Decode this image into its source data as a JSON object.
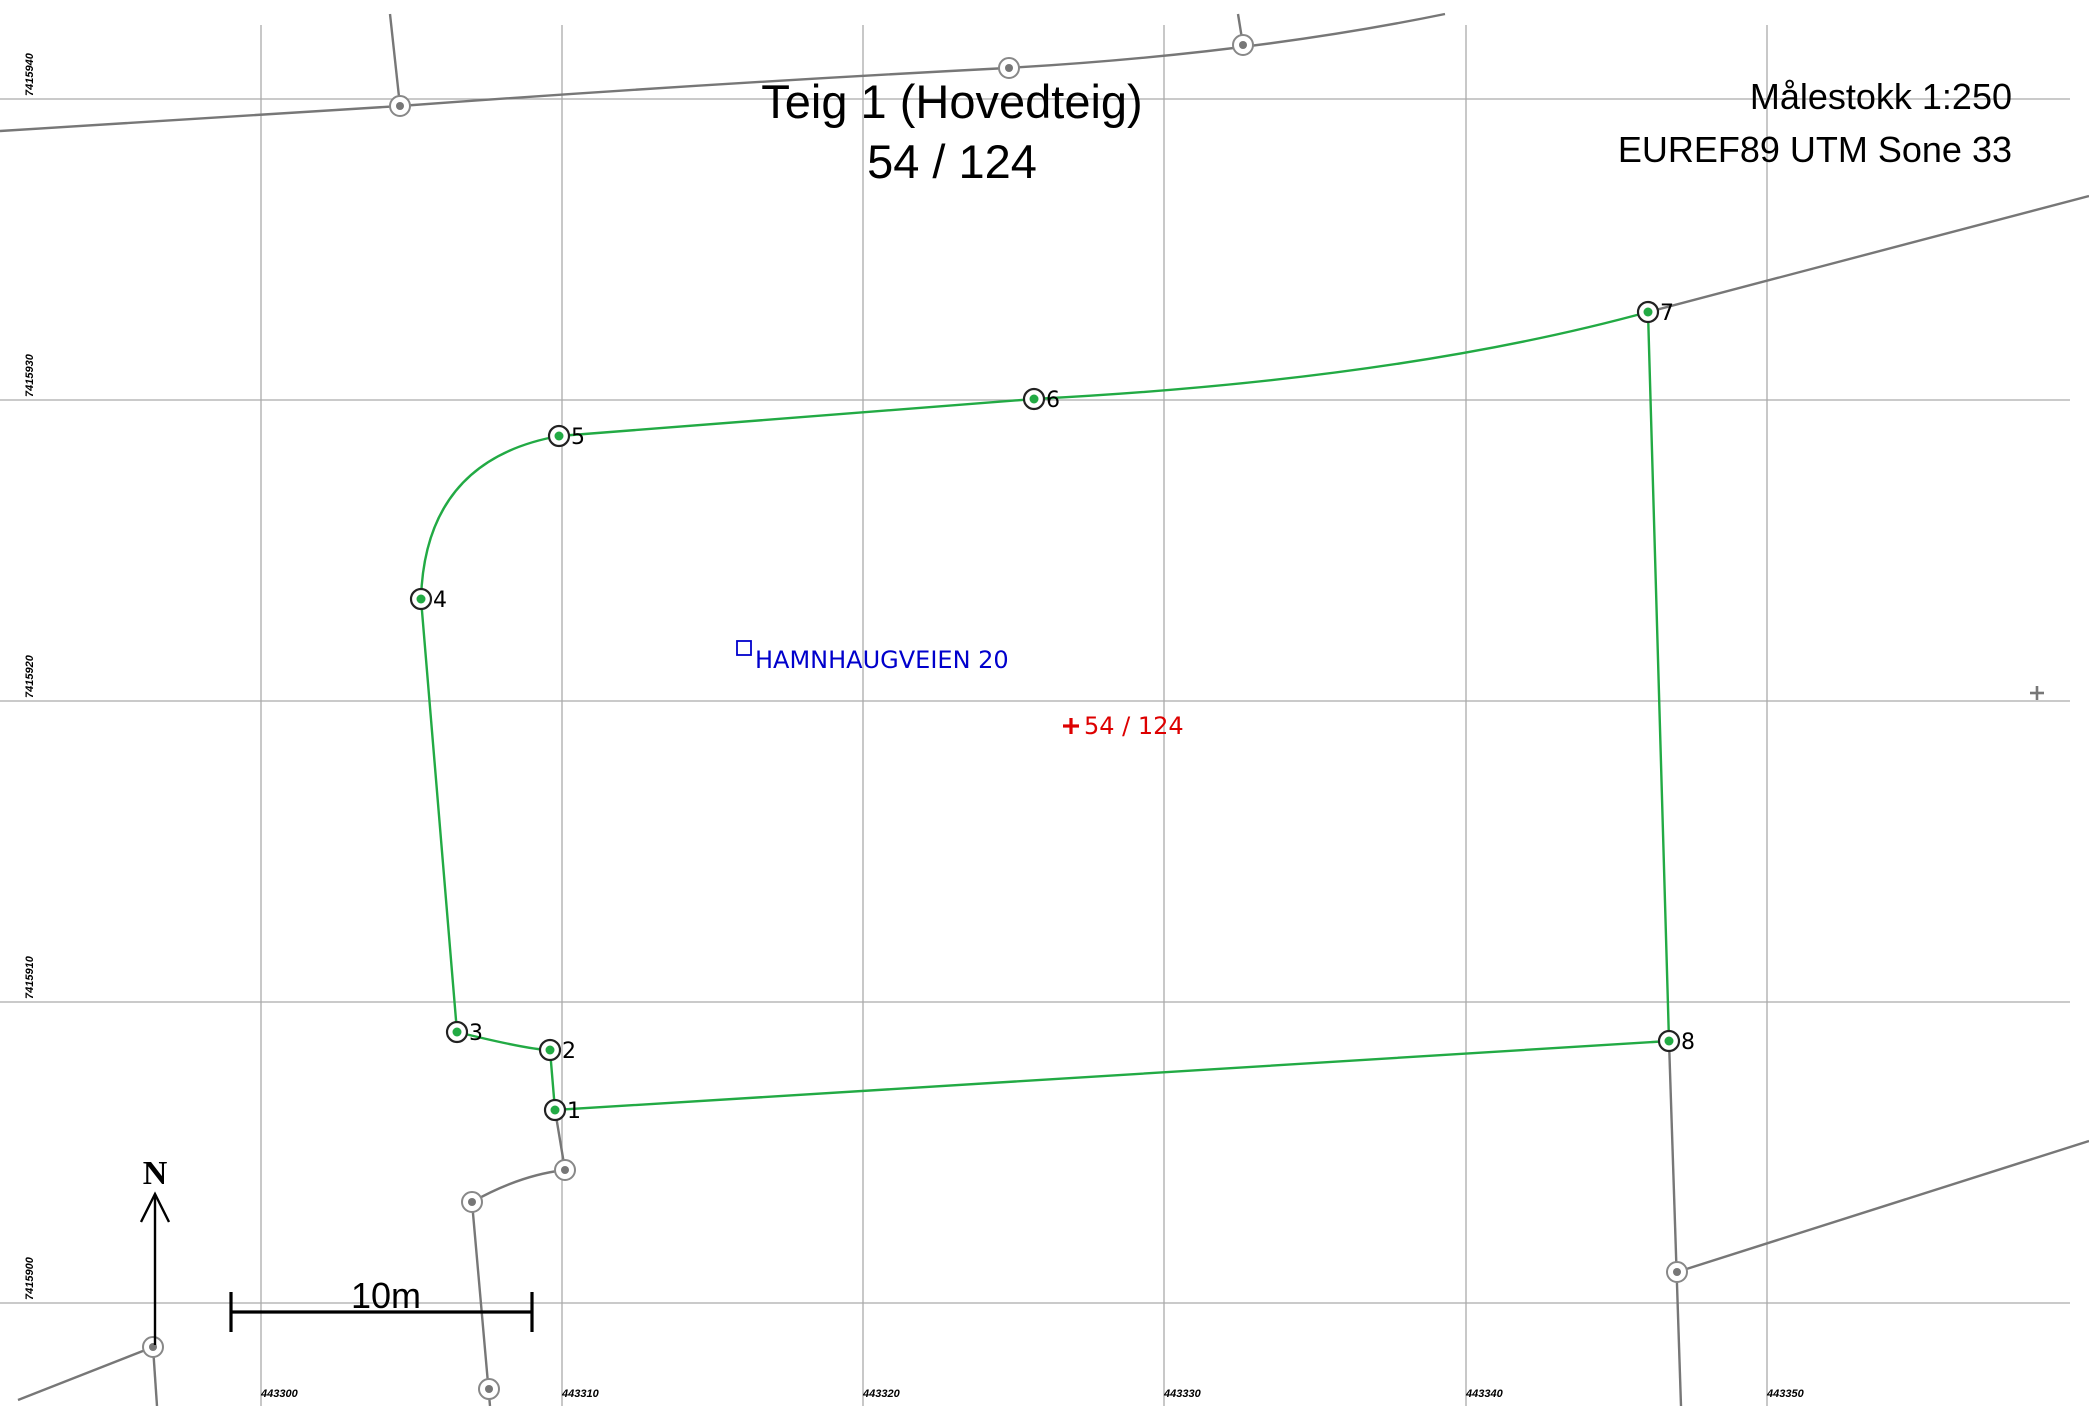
{
  "title": {
    "line1": "Teig 1 (Hovedteig)",
    "line2": "54 / 124"
  },
  "info": {
    "scale": "Målestokk 1:250",
    "crs": "EUREF89 UTM Sone 33"
  },
  "grid": {
    "easting": [
      "443300",
      "443310",
      "443320",
      "443330",
      "443340",
      "443350"
    ],
    "northing": [
      "7415940",
      "7415930",
      "7415920",
      "7415910",
      "7415900"
    ]
  },
  "boundary_points": [
    {
      "label": "1"
    },
    {
      "label": "2"
    },
    {
      "label": "3"
    },
    {
      "label": "4"
    },
    {
      "label": "5"
    },
    {
      "label": "6"
    },
    {
      "label": "7"
    },
    {
      "label": "8"
    }
  ],
  "address": {
    "text": "HAMNHAUGVEIEN 20",
    "color": "#0000cc"
  },
  "parcel_label": {
    "text": "54 / 124",
    "color": "#dd0000"
  },
  "scale_bar": {
    "label": "10m"
  },
  "north_arrow": {
    "label": "N"
  },
  "colors": {
    "boundary": "#22aa44",
    "neighbor": "#777777",
    "grid": "#aaaaaa"
  }
}
